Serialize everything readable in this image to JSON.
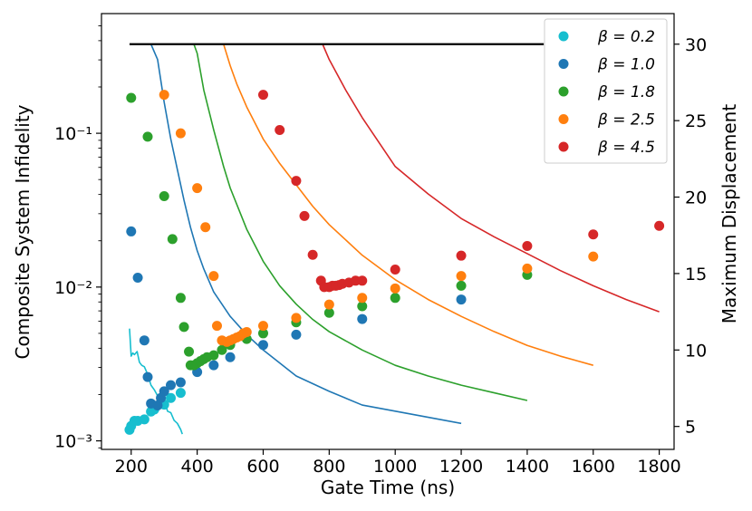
{
  "chart_data": {
    "type": "scatter",
    "xlabel": "Gate Time (ns)",
    "ylabel": "Composite System Infidelity",
    "y2label": "Maximum Displacement",
    "xlim": [
      110,
      1845
    ],
    "ylim": [
      0.00088,
      0.6
    ],
    "y2lim": [
      3.5,
      32
    ],
    "xticks": [
      200,
      400,
      600,
      800,
      1000,
      1200,
      1400,
      1600,
      1800
    ],
    "yticks": [
      {
        "value": 0.001,
        "label": "10⁻³"
      },
      {
        "value": 0.01,
        "label": "10⁻²"
      },
      {
        "value": 0.1,
        "label": "10⁻¹"
      }
    ],
    "y2ticks": [
      5,
      10,
      15,
      20,
      25,
      30
    ],
    "legend_location": "top-right",
    "series": [
      {
        "name": "β = 0.2",
        "color": "#17becf",
        "points": [
          [
            195,
            0.00118
          ],
          [
            200,
            0.00125
          ],
          [
            210,
            0.00135
          ],
          [
            220,
            0.00135
          ],
          [
            240,
            0.00138
          ],
          [
            260,
            0.00155
          ],
          [
            270,
            0.0016
          ],
          [
            290,
            0.00175
          ],
          [
            300,
            0.00172
          ],
          [
            320,
            0.0019
          ],
          [
            350,
            0.00205
          ]
        ],
        "displacement_x": [
          195,
          200,
          205,
          210,
          218,
          225,
          232,
          240,
          250,
          260,
          270,
          280,
          290,
          300,
          310,
          320,
          330,
          340,
          350,
          355
        ],
        "displacement_y": [
          11.4,
          9.6,
          9.8,
          9.7,
          9.9,
          9.2,
          9.0,
          8.9,
          8.4,
          7.7,
          7.4,
          7.0,
          6.8,
          6.9,
          6.0,
          5.9,
          5.4,
          5.2,
          4.8,
          4.5
        ]
      },
      {
        "name": "β = 1.0",
        "color": "#1f77b4",
        "points": [
          [
            200,
            0.023
          ],
          [
            220,
            0.0115
          ],
          [
            240,
            0.0045
          ],
          [
            250,
            0.0026
          ],
          [
            260,
            0.00175
          ],
          [
            280,
            0.0017
          ],
          [
            290,
            0.0019
          ],
          [
            300,
            0.0021
          ],
          [
            320,
            0.0023
          ],
          [
            350,
            0.0024
          ],
          [
            400,
            0.0028
          ],
          [
            450,
            0.0031
          ],
          [
            500,
            0.0035
          ],
          [
            600,
            0.0042
          ],
          [
            700,
            0.0049
          ],
          [
            900,
            0.0062
          ],
          [
            1200,
            0.0083
          ]
        ],
        "displacement_x": [
          200,
          250,
          260,
          280,
          300,
          320,
          340,
          360,
          380,
          400,
          420,
          450,
          500,
          550,
          600,
          700,
          800,
          900,
          1000,
          1100,
          1200
        ],
        "displacement_y": [
          30,
          30,
          30,
          29.0,
          26.2,
          23.8,
          21.8,
          19.8,
          18.0,
          16.5,
          15.3,
          13.8,
          12.2,
          11.0,
          10.0,
          8.3,
          7.3,
          6.4,
          6.0,
          5.6,
          5.2
        ]
      },
      {
        "name": "β = 1.8",
        "color": "#2ca02c",
        "points": [
          [
            200,
            0.17
          ],
          [
            250,
            0.095
          ],
          [
            300,
            0.039
          ],
          [
            325,
            0.0205
          ],
          [
            350,
            0.0085
          ],
          [
            360,
            0.0055
          ],
          [
            375,
            0.0038
          ],
          [
            380,
            0.0031
          ],
          [
            390,
            0.0031
          ],
          [
            400,
            0.0032
          ],
          [
            410,
            0.0033
          ],
          [
            420,
            0.0034
          ],
          [
            430,
            0.0035
          ],
          [
            450,
            0.0036
          ],
          [
            475,
            0.0039
          ],
          [
            500,
            0.0042
          ],
          [
            550,
            0.0046
          ],
          [
            600,
            0.005
          ],
          [
            700,
            0.0059
          ],
          [
            800,
            0.0068
          ],
          [
            900,
            0.0075
          ],
          [
            1000,
            0.0085
          ],
          [
            1200,
            0.0102
          ],
          [
            1400,
            0.012
          ]
        ],
        "displacement_x": [
          200,
          300,
          390,
          400,
          420,
          450,
          480,
          500,
          550,
          600,
          650,
          700,
          750,
          800,
          900,
          1000,
          1100,
          1200,
          1300,
          1400
        ],
        "displacement_y": [
          30,
          30,
          30,
          29.4,
          27.0,
          24.4,
          22.0,
          20.6,
          17.9,
          15.8,
          14.2,
          13.0,
          12.0,
          11.2,
          10.0,
          9.0,
          8.3,
          7.7,
          7.2,
          6.7
        ]
      },
      {
        "name": "β = 2.5",
        "color": "#ff7f0e",
        "points": [
          [
            300,
            0.178
          ],
          [
            350,
            0.1
          ],
          [
            400,
            0.044
          ],
          [
            425,
            0.0245
          ],
          [
            450,
            0.0118
          ],
          [
            460,
            0.0056
          ],
          [
            475,
            0.0045
          ],
          [
            490,
            0.0044
          ],
          [
            500,
            0.0045
          ],
          [
            510,
            0.0046
          ],
          [
            520,
            0.0047
          ],
          [
            530,
            0.0048
          ],
          [
            540,
            0.005
          ],
          [
            550,
            0.0051
          ],
          [
            600,
            0.0056
          ],
          [
            700,
            0.0063
          ],
          [
            800,
            0.0077
          ],
          [
            900,
            0.0085
          ],
          [
            1000,
            0.0098
          ],
          [
            1200,
            0.0118
          ],
          [
            1400,
            0.0132
          ],
          [
            1600,
            0.0158
          ]
        ],
        "displacement_x": [
          200,
          300,
          480,
          500,
          520,
          550,
          600,
          650,
          700,
          750,
          800,
          900,
          1000,
          1100,
          1200,
          1300,
          1400,
          1500,
          1600
        ],
        "displacement_y": [
          30,
          30,
          30,
          28.6,
          27.4,
          25.9,
          23.8,
          22.2,
          20.8,
          19.4,
          18.2,
          16.2,
          14.6,
          13.3,
          12.2,
          11.2,
          10.3,
          9.6,
          9.0
        ]
      },
      {
        "name": "β = 4.5",
        "color": "#d62728",
        "points": [
          [
            600,
            0.178
          ],
          [
            650,
            0.105
          ],
          [
            700,
            0.049
          ],
          [
            725,
            0.029
          ],
          [
            750,
            0.0162
          ],
          [
            775,
            0.011
          ],
          [
            785,
            0.01
          ],
          [
            800,
            0.01
          ],
          [
            810,
            0.0102
          ],
          [
            820,
            0.0102
          ],
          [
            830,
            0.0103
          ],
          [
            840,
            0.0105
          ],
          [
            860,
            0.0107
          ],
          [
            880,
            0.011
          ],
          [
            900,
            0.011
          ],
          [
            1000,
            0.013
          ],
          [
            1200,
            0.016
          ],
          [
            1400,
            0.0185
          ],
          [
            1600,
            0.022
          ],
          [
            1800,
            0.025
          ]
        ],
        "displacement_x": [
          600,
          700,
          780,
          800,
          850,
          900,
          950,
          1000,
          1100,
          1200,
          1300,
          1400,
          1500,
          1600,
          1700,
          1800
        ],
        "displacement_y": [
          30,
          30,
          30,
          29.0,
          27.0,
          25.2,
          23.6,
          22.0,
          20.2,
          18.6,
          17.4,
          16.3,
          15.2,
          14.2,
          13.3,
          12.5
        ]
      }
    ],
    "max_line": {
      "color": "#000000",
      "x": [
        195,
        1450
      ],
      "y2": [
        30,
        30
      ]
    }
  }
}
